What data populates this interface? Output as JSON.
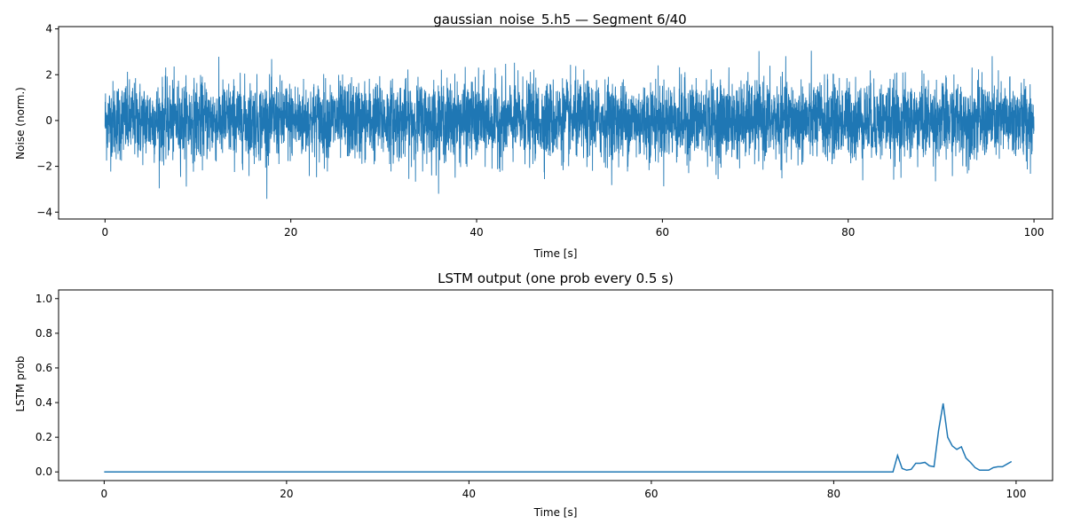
{
  "chart_data": [
    {
      "type": "line",
      "title": "gaussian_noise_5.h5 — Segment 6/40",
      "xlabel": "Time [s]",
      "ylabel": "Noise (norm.)",
      "xlim": [
        -5,
        102
      ],
      "ylim": [
        -4.3,
        4.1
      ],
      "xticks": [
        0,
        20,
        40,
        60,
        80,
        100
      ],
      "yticks": [
        -4,
        -2,
        0,
        2,
        4
      ],
      "grid": false,
      "series_color": "#1f77b4",
      "signal": {
        "kind": "gaussian-noise",
        "x_start": 0,
        "x_end": 100,
        "mean": 0,
        "typical_range": [
          -2.5,
          2.5
        ],
        "min": -3.95,
        "max": 3.7
      }
    },
    {
      "type": "line",
      "title": "LSTM output (one prob every 0.5 s)",
      "xlabel": "Time [s]",
      "ylabel": "LSTM prob",
      "xlim": [
        -5,
        104
      ],
      "ylim": [
        -0.05,
        1.05
      ],
      "xticks": [
        0,
        20,
        40,
        60,
        80,
        100
      ],
      "yticks": [
        0.0,
        0.2,
        0.4,
        0.6,
        0.8,
        1.0
      ],
      "grid": false,
      "series_color": "#1f77b4",
      "x": [
        0,
        86,
        86.5,
        87,
        87.5,
        88,
        88.5,
        89,
        89.5,
        90,
        90.5,
        91,
        91.5,
        92,
        92.5,
        93,
        93.5,
        94,
        94.5,
        95,
        95.5,
        96,
        96.5,
        97,
        97.5,
        98,
        98.5,
        99,
        99.5
      ],
      "y": [
        0,
        0,
        0,
        0.095,
        0.02,
        0.01,
        0.015,
        0.05,
        0.05,
        0.055,
        0.035,
        0.03,
        0.24,
        0.395,
        0.2,
        0.15,
        0.13,
        0.145,
        0.08,
        0.055,
        0.025,
        0.01,
        0.01,
        0.01,
        0.025,
        0.03,
        0.03,
        0.045,
        0.06
      ]
    }
  ]
}
